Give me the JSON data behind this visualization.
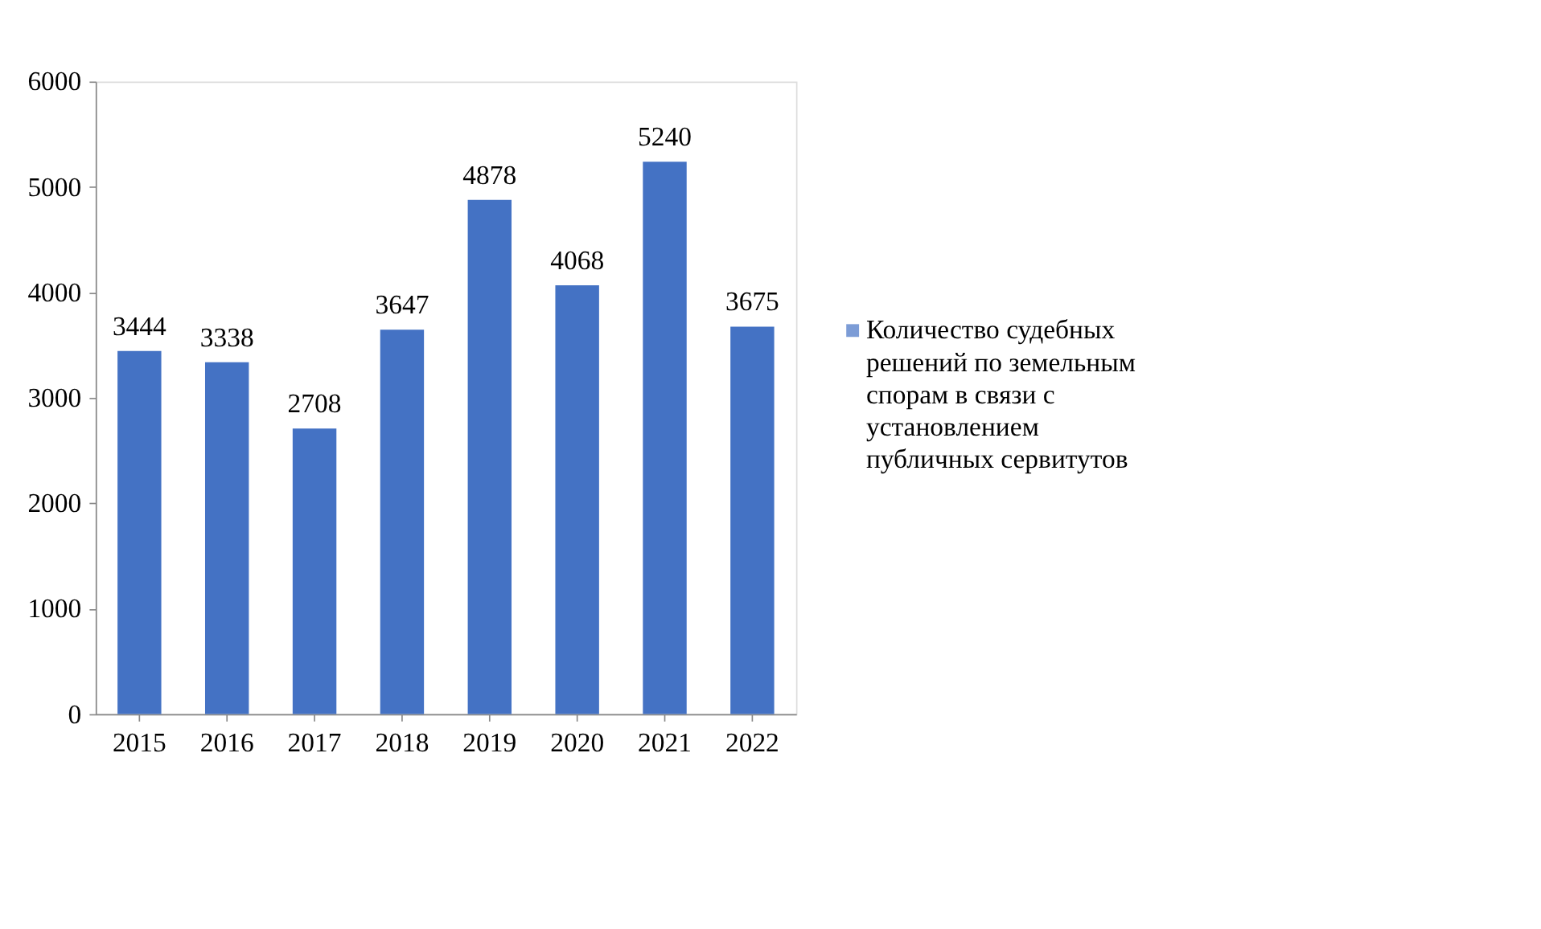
{
  "chart_data": {
    "type": "bar",
    "categories": [
      "2015",
      "2016",
      "2017",
      "2018",
      "2019",
      "2020",
      "2021",
      "2022"
    ],
    "series": [
      {
        "name": "Количество судебных решений по земельным спорам в связи с установлением публичных сервитутов",
        "color": "#4472c4",
        "values": [
          3444,
          3338,
          2708,
          3647,
          4878,
          4068,
          5240,
          3675
        ]
      }
    ],
    "ylim": [
      0,
      6000
    ],
    "yticks": [
      0,
      1000,
      2000,
      3000,
      4000,
      5000,
      6000
    ],
    "data_labels": true,
    "grid": false,
    "legend": "right"
  }
}
